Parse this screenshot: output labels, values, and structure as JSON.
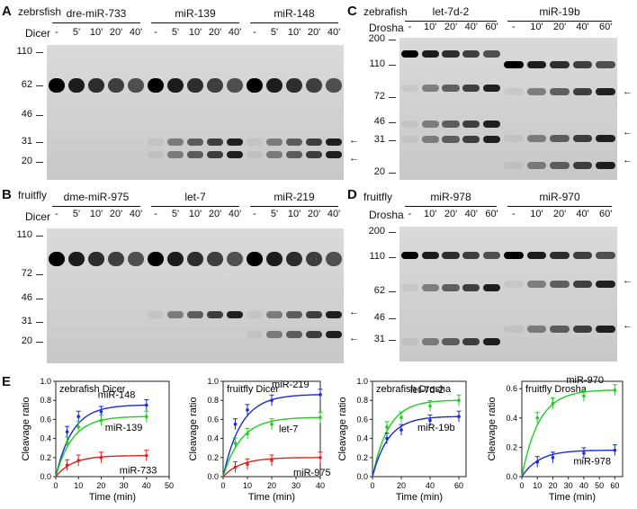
{
  "panels": {
    "A": {
      "letter": "A",
      "species": "zebrsfish",
      "enzyme": "Dicer",
      "groups": [
        "dre-miR-733",
        "miR-139",
        "miR-148"
      ],
      "lanes": [
        "-",
        "5'",
        "10'",
        "20'",
        "40'"
      ],
      "markers": [
        "110",
        "62",
        "46",
        "31",
        "20"
      ]
    },
    "B": {
      "letter": "B",
      "species": "fruitfly",
      "enzyme": "Dicer",
      "groups": [
        "dme-miR-975",
        "let-7",
        "miR-219"
      ],
      "lanes": [
        "-",
        "5'",
        "10'",
        "20'",
        "40'"
      ],
      "markers": [
        "110",
        "72",
        "46",
        "31",
        "20"
      ]
    },
    "C": {
      "letter": "C",
      "species": "zebrafish",
      "enzyme": "Drosha",
      "groups": [
        "let-7d-2",
        "miR-19b"
      ],
      "lanes": [
        "-",
        "10'",
        "20'",
        "40'",
        "60'"
      ],
      "markers": [
        "200",
        "110",
        "72",
        "46",
        "31",
        "20"
      ]
    },
    "D": {
      "letter": "D",
      "species": "fruitfly",
      "enzyme": "Drosha",
      "groups": [
        "miR-978",
        "miR-970"
      ],
      "lanes": [
        "-",
        "10'",
        "20'",
        "40'",
        "60'"
      ],
      "markers": [
        "200",
        "110",
        "62",
        "46",
        "31"
      ]
    },
    "E": {
      "letter": "E"
    }
  },
  "chart_data": [
    {
      "type": "line",
      "title": "zebrafish Dicer",
      "xlabel": "Time (min)",
      "ylabel": "Cleavage ratio",
      "xlim": [
        0,
        50
      ],
      "ylim": [
        0,
        1.0
      ],
      "xticks": [
        "0",
        "10",
        "20",
        "30",
        "40",
        "50"
      ],
      "yticks": [
        "0.0",
        "0.2",
        "0.4",
        "0.6",
        "0.8",
        "1.0"
      ],
      "x": [
        0,
        5,
        10,
        20,
        40
      ],
      "series": [
        {
          "name": "miR-148",
          "color": "#1a2bd6",
          "values": [
            0,
            0.47,
            0.63,
            0.68,
            0.75
          ]
        },
        {
          "name": "miR-139",
          "color": "#22cc22",
          "values": [
            0,
            0.36,
            0.52,
            0.59,
            0.63
          ]
        },
        {
          "name": "miR-733",
          "color": "#e02020",
          "values": [
            0,
            0.12,
            0.17,
            0.2,
            0.22
          ]
        }
      ]
    },
    {
      "type": "line",
      "title": "fruitfly Dicer",
      "xlabel": "Time (min)",
      "ylabel": "Cleavage ratio",
      "xlim": [
        0,
        40
      ],
      "ylim": [
        0,
        1.0
      ],
      "xticks": [
        "0",
        "10",
        "20",
        "30",
        "40"
      ],
      "yticks": [
        "0.0",
        "0.2",
        "0.4",
        "0.6",
        "0.8",
        "1.0"
      ],
      "x": [
        0,
        5,
        10,
        20,
        40
      ],
      "series": [
        {
          "name": "miR-219",
          "color": "#1a2bd6",
          "values": [
            0,
            0.55,
            0.7,
            0.8,
            0.86
          ]
        },
        {
          "name": "let-7",
          "color": "#22cc22",
          "values": [
            0,
            0.35,
            0.45,
            0.55,
            0.62
          ]
        },
        {
          "name": "miR-975",
          "color": "#e02020",
          "values": [
            0,
            0.1,
            0.13,
            0.17,
            0.2
          ]
        }
      ]
    },
    {
      "type": "line",
      "title": "zebrafish Drosha",
      "xlabel": "Time (min)",
      "ylabel": "Cleavage ratio",
      "xlim": [
        0,
        65
      ],
      "ylim": [
        0,
        1.0
      ],
      "xticks": [
        "0",
        "20",
        "40",
        "60"
      ],
      "yticks": [
        "0.0",
        "0.2",
        "0.4",
        "0.6",
        "0.8",
        "1.0"
      ],
      "x": [
        0,
        10,
        20,
        40,
        60
      ],
      "series": [
        {
          "name": "let-7d-2",
          "color": "#22cc22",
          "values": [
            0,
            0.52,
            0.62,
            0.74,
            0.8
          ]
        },
        {
          "name": "miR-19b",
          "color": "#1a2bd6",
          "values": [
            0,
            0.4,
            0.49,
            0.59,
            0.63
          ]
        }
      ]
    },
    {
      "type": "line",
      "title": "fruitfly Drosha",
      "xlabel": "Time (min)",
      "ylabel": "Cleavage ratio",
      "xlim": [
        0,
        65
      ],
      "ylim": [
        0,
        0.65
      ],
      "xticks": [
        "0",
        "10",
        "20",
        "30",
        "40",
        "50",
        "60"
      ],
      "yticks": [
        "0.0",
        "0.2",
        "0.4",
        "0.6"
      ],
      "x": [
        0,
        10,
        20,
        40,
        60
      ],
      "series": [
        {
          "name": "miR-970",
          "color": "#22cc22",
          "values": [
            0,
            0.4,
            0.5,
            0.55,
            0.59
          ]
        },
        {
          "name": "miR-978",
          "color": "#1a2bd6",
          "values": [
            0,
            0.1,
            0.13,
            0.16,
            0.18
          ]
        }
      ]
    }
  ]
}
